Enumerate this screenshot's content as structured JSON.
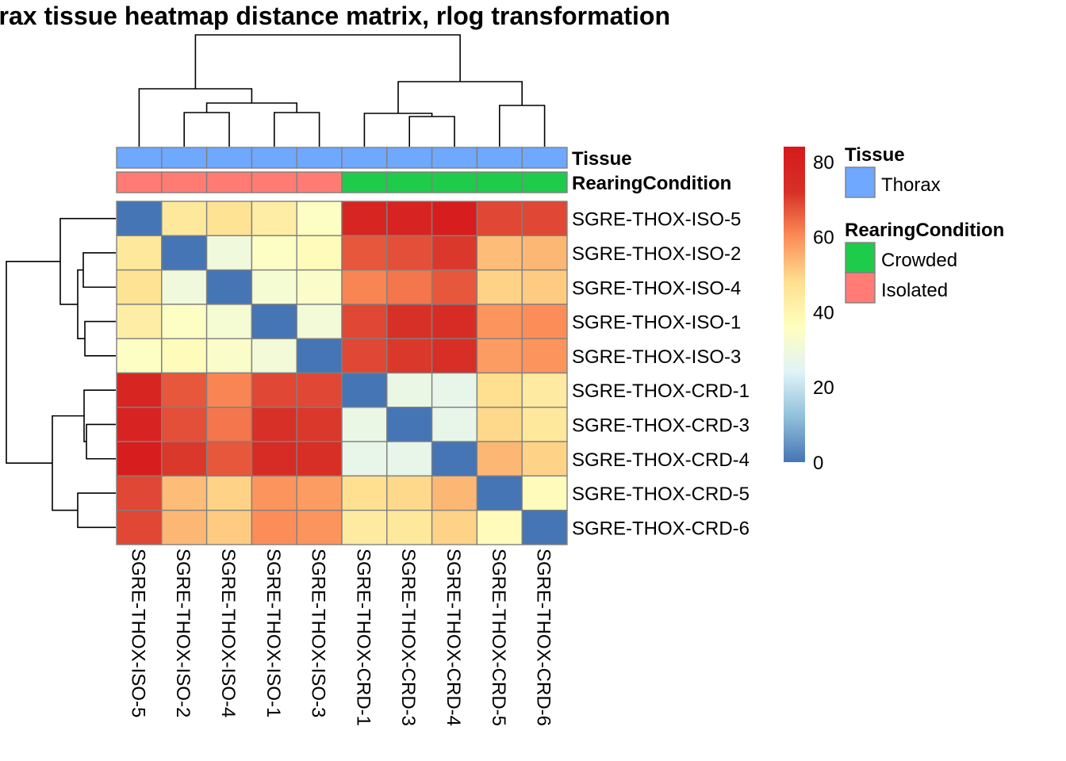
{
  "chart_data": {
    "type": "heatmap",
    "title": "orax tissue heatmap distance matrix, rlog transformation",
    "rows": [
      "SGRE-THOX-ISO-5",
      "SGRE-THOX-ISO-2",
      "SGRE-THOX-ISO-4",
      "SGRE-THOX-ISO-1",
      "SGRE-THOX-ISO-3",
      "SGRE-THOX-CRD-1",
      "SGRE-THOX-CRD-3",
      "SGRE-THOX-CRD-4",
      "SGRE-THOX-CRD-5",
      "SGRE-THOX-CRD-6"
    ],
    "columns": [
      "SGRE-THOX-ISO-5",
      "SGRE-THOX-ISO-2",
      "SGRE-THOX-ISO-4",
      "SGRE-THOX-ISO-1",
      "SGRE-THOX-ISO-3",
      "SGRE-THOX-CRD-1",
      "SGRE-THOX-CRD-3",
      "SGRE-THOX-CRD-4",
      "SGRE-THOX-CRD-5",
      "SGRE-THOX-CRD-6"
    ],
    "values": [
      [
        0,
        45,
        47,
        43,
        35,
        78,
        79,
        82,
        69,
        69
      ],
      [
        45,
        0,
        30,
        35,
        37,
        67,
        68,
        71,
        53,
        54
      ],
      [
        47,
        30,
        0,
        32,
        34,
        61,
        63,
        67,
        50,
        51
      ],
      [
        43,
        35,
        32,
        0,
        31,
        69,
        72,
        74,
        59,
        60
      ],
      [
        35,
        37,
        34,
        31,
        0,
        69,
        71,
        73,
        58,
        59
      ],
      [
        78,
        67,
        61,
        69,
        69,
        0,
        28,
        27,
        48,
        44
      ],
      [
        79,
        68,
        63,
        72,
        71,
        28,
        0,
        27,
        49,
        45
      ],
      [
        82,
        71,
        67,
        74,
        73,
        27,
        27,
        0,
        54,
        50
      ],
      [
        69,
        53,
        50,
        59,
        58,
        48,
        49,
        54,
        0,
        37
      ],
      [
        69,
        54,
        51,
        60,
        59,
        44,
        45,
        50,
        37,
        0
      ]
    ],
    "color_scale": {
      "min": 0,
      "max": 84,
      "ticks": [
        0,
        20,
        40,
        60,
        80
      ],
      "stops": [
        "#4575B4",
        "#91BFDB",
        "#E0F3F8",
        "#FFFFBF",
        "#FEE090",
        "#FC8D59",
        "#D73027",
        "#D7191C"
      ]
    },
    "annotations": {
      "tracks": [
        {
          "name": "Tissue",
          "values": [
            "Thorax",
            "Thorax",
            "Thorax",
            "Thorax",
            "Thorax",
            "Thorax",
            "Thorax",
            "Thorax",
            "Thorax",
            "Thorax"
          ]
        },
        {
          "name": "RearingCondition",
          "values": [
            "Isolated",
            "Isolated",
            "Isolated",
            "Isolated",
            "Isolated",
            "Crowded",
            "Crowded",
            "Crowded",
            "Crowded",
            "Crowded"
          ]
        }
      ],
      "colors": {
        "Thorax": "#6FA8FF",
        "Crowded": "#1FCB4A",
        "Isolated": "#FF7B74"
      }
    },
    "legend": {
      "placement": "right",
      "groups": [
        {
          "title": "Tissue",
          "items": [
            "Thorax"
          ]
        },
        {
          "title": "RearingCondition",
          "items": [
            "Crowded",
            "Isolated"
          ]
        }
      ]
    },
    "dendrogram": {
      "rows": "hierarchical clustering (left)",
      "columns": "hierarchical clustering (top)"
    }
  }
}
